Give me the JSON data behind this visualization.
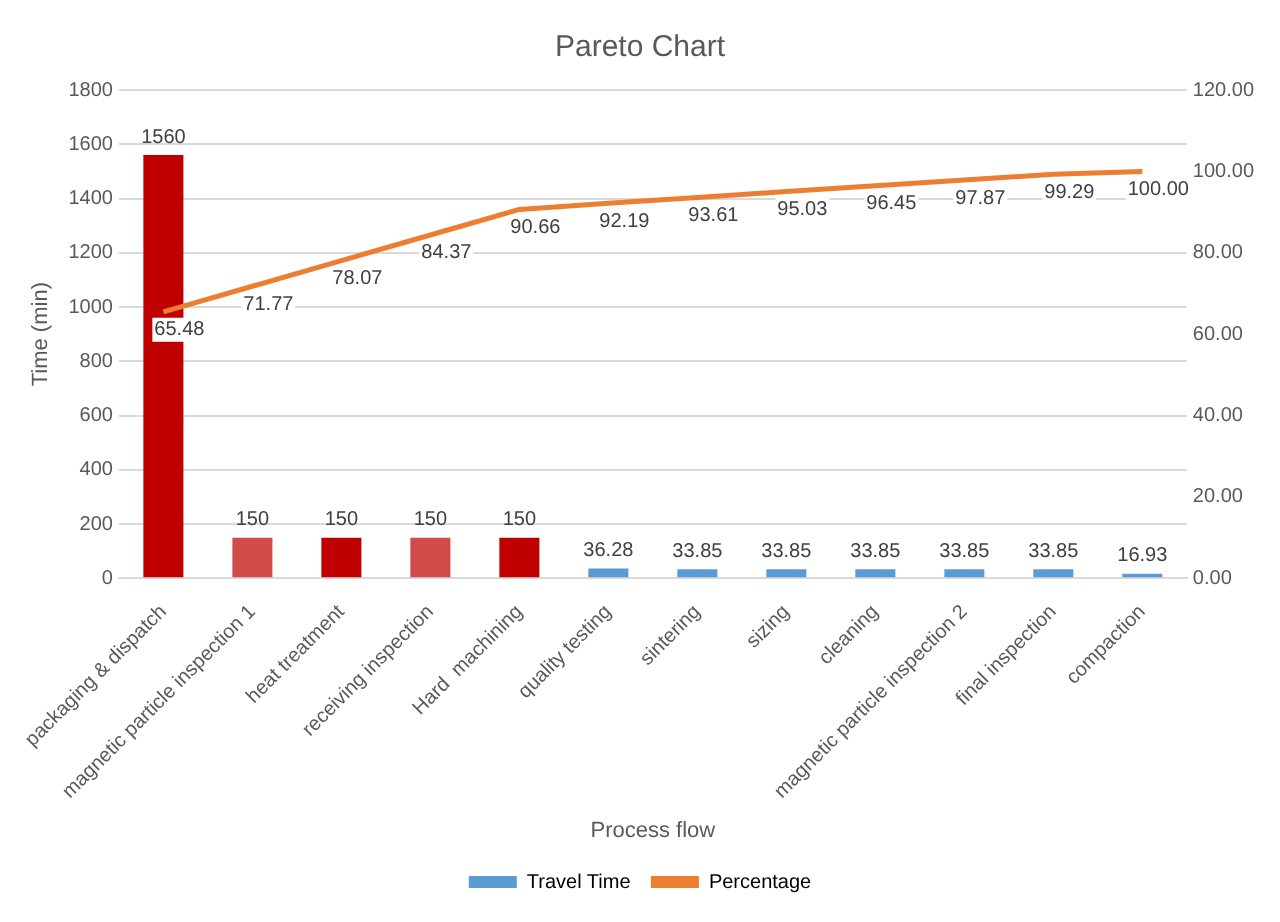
{
  "chart_data": {
    "type": "bar",
    "title": "Pareto Chart",
    "xlabel": "Process flow",
    "ylabel": "Time (min)",
    "categories": [
      "packaging & dispatch",
      "magnetic particle inspection 1",
      "heat treatment",
      "receiving inspection",
      "Hard  machining",
      "quality testing",
      "sintering",
      "sizing",
      "cleaning",
      "magnetic particle inspection 2",
      "final inspection",
      "compaction"
    ],
    "series": [
      {
        "name": "Travel Time",
        "color": "#5b9bd5",
        "colors": [
          "#c00000",
          "#d24b4b",
          "#c00000",
          "#d24b4b",
          "#c00000",
          "#5b9bd5",
          "#5b9bd5",
          "#5b9bd5",
          "#5b9bd5",
          "#5b9bd5",
          "#5b9bd5",
          "#5b9bd5"
        ],
        "values": [
          1560,
          150,
          150,
          150,
          150,
          36.28,
          33.85,
          33.85,
          33.85,
          33.85,
          33.85,
          16.93
        ],
        "value_labels": [
          "1560",
          "150",
          "150",
          "150",
          "150",
          "36.28",
          "33.85",
          "33.85",
          "33.85",
          "33.85",
          "33.85",
          "16.93"
        ]
      },
      {
        "name": "Percentage",
        "type": "line",
        "axis": "y2",
        "color": "#ed7d31",
        "values": [
          65.48,
          71.77,
          78.07,
          84.37,
          90.66,
          92.19,
          93.61,
          95.03,
          96.45,
          97.87,
          99.29,
          100
        ],
        "value_labels": [
          "65.48",
          "71.77",
          "78.07",
          "84.37",
          "90.66",
          "92.19",
          "93.61",
          "95.03",
          "96.45",
          "97.87",
          "99.29",
          "100.00"
        ]
      }
    ],
    "ylim": [
      0,
      1800
    ],
    "yticks": [
      0,
      200,
      400,
      600,
      800,
      1000,
      1200,
      1400,
      1600,
      1800
    ],
    "y2lim": [
      0,
      120
    ],
    "y2ticks": [
      {
        "value": 0,
        "label": "0.00"
      },
      {
        "value": 20,
        "label": "20.00"
      },
      {
        "value": 40,
        "label": "40.00"
      },
      {
        "value": 60,
        "label": "60.00"
      },
      {
        "value": 80,
        "label": "80.00"
      },
      {
        "value": 100,
        "label": "100.00"
      },
      {
        "value": 120,
        "label": "120.00"
      }
    ],
    "grid": "y",
    "legend": "bottom",
    "marker": "none",
    "line_style": "solid"
  }
}
